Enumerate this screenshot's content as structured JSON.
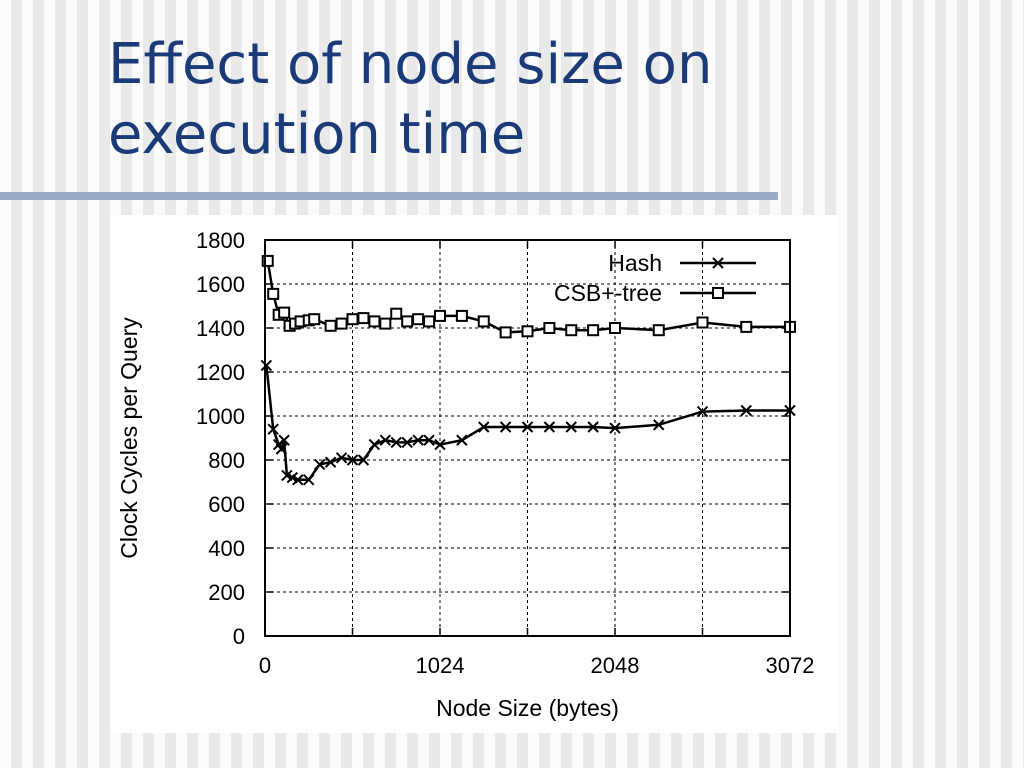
{
  "slide": {
    "title": "Effect of node size on execution time"
  },
  "chart_data": {
    "type": "line",
    "title": "",
    "xlabel": "Node Size (bytes)",
    "ylabel": "Clock Cycles per Query",
    "xlim": [
      0,
      3072
    ],
    "ylim": [
      0,
      1800
    ],
    "xticks": [
      0,
      1024,
      2048,
      3072
    ],
    "yticks": [
      0,
      200,
      400,
      600,
      800,
      1000,
      1200,
      1400,
      1600,
      1800
    ],
    "grid": true,
    "legend_position": "top-right",
    "series": [
      {
        "name": "Hash",
        "marker": "x",
        "color": "#000000",
        "points": [
          [
            8,
            1230
          ],
          [
            48,
            940
          ],
          [
            80,
            870
          ],
          [
            96,
            850
          ],
          [
            112,
            890
          ],
          [
            128,
            730
          ],
          [
            160,
            720
          ],
          [
            192,
            710
          ],
          [
            256,
            710
          ],
          [
            320,
            780
          ],
          [
            384,
            790
          ],
          [
            448,
            810
          ],
          [
            512,
            800
          ],
          [
            576,
            800
          ],
          [
            640,
            870
          ],
          [
            704,
            890
          ],
          [
            768,
            880
          ],
          [
            832,
            880
          ],
          [
            896,
            890
          ],
          [
            960,
            890
          ],
          [
            1024,
            870
          ],
          [
            1152,
            890
          ],
          [
            1280,
            950
          ],
          [
            1408,
            950
          ],
          [
            1536,
            950
          ],
          [
            1664,
            950
          ],
          [
            1792,
            950
          ],
          [
            1920,
            950
          ],
          [
            2048,
            945
          ],
          [
            2304,
            960
          ],
          [
            2560,
            1020
          ],
          [
            2816,
            1025
          ],
          [
            3072,
            1025
          ]
        ]
      },
      {
        "name": "CSB+-tree",
        "marker": "square",
        "color": "#000000",
        "points": [
          [
            16,
            1705
          ],
          [
            48,
            1555
          ],
          [
            80,
            1460
          ],
          [
            112,
            1470
          ],
          [
            144,
            1410
          ],
          [
            176,
            1420
          ],
          [
            208,
            1430
          ],
          [
            256,
            1435
          ],
          [
            288,
            1440
          ],
          [
            384,
            1410
          ],
          [
            448,
            1420
          ],
          [
            512,
            1440
          ],
          [
            576,
            1445
          ],
          [
            640,
            1430
          ],
          [
            704,
            1420
          ],
          [
            768,
            1465
          ],
          [
            832,
            1430
          ],
          [
            896,
            1440
          ],
          [
            960,
            1430
          ],
          [
            1024,
            1455
          ],
          [
            1152,
            1455
          ],
          [
            1280,
            1430
          ],
          [
            1408,
            1380
          ],
          [
            1536,
            1385
          ],
          [
            1664,
            1400
          ],
          [
            1792,
            1390
          ],
          [
            1920,
            1390
          ],
          [
            2048,
            1400
          ],
          [
            2304,
            1390
          ],
          [
            2560,
            1425
          ],
          [
            2816,
            1405
          ],
          [
            3072,
            1405
          ]
        ]
      }
    ]
  }
}
